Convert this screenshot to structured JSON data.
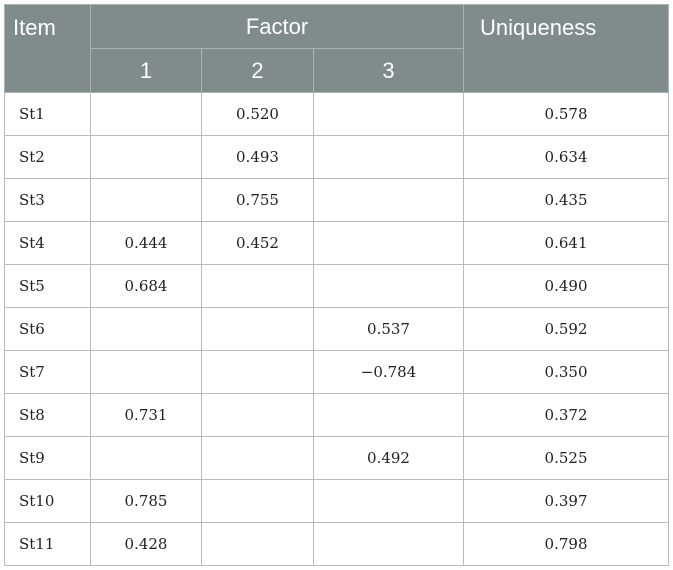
{
  "table": {
    "headers": {
      "item": "Item",
      "factor": "Factor",
      "uniqueness": "Uniqueness",
      "factor_columns": [
        "1",
        "2",
        "3"
      ]
    },
    "rows": [
      {
        "item": "St1",
        "f1": "",
        "f2": "0.520",
        "f3": "",
        "uniqueness": "0.578"
      },
      {
        "item": "St2",
        "f1": "",
        "f2": "0.493",
        "f3": "",
        "uniqueness": "0.634"
      },
      {
        "item": "St3",
        "f1": "",
        "f2": "0.755",
        "f3": "",
        "uniqueness": "0.435"
      },
      {
        "item": "St4",
        "f1": "0.444",
        "f2": "0.452",
        "f3": "",
        "uniqueness": "0.641"
      },
      {
        "item": "St5",
        "f1": "0.684",
        "f2": "",
        "f3": "",
        "uniqueness": "0.490"
      },
      {
        "item": "St6",
        "f1": "",
        "f2": "",
        "f3": "0.537",
        "uniqueness": "0.592"
      },
      {
        "item": "St7",
        "f1": "",
        "f2": "",
        "f3": "−0.784",
        "uniqueness": "0.350"
      },
      {
        "item": "St8",
        "f1": "0.731",
        "f2": "",
        "f3": "",
        "uniqueness": "0.372"
      },
      {
        "item": "St9",
        "f1": "",
        "f2": "",
        "f3": "0.492",
        "uniqueness": "0.525"
      },
      {
        "item": "St10",
        "f1": "0.785",
        "f2": "",
        "f3": "",
        "uniqueness": "0.397"
      },
      {
        "item": "St11",
        "f1": "0.428",
        "f2": "",
        "f3": "",
        "uniqueness": "0.798"
      }
    ]
  },
  "colors": {
    "header_bg": "#808b8b",
    "header_text": "#ffffff",
    "grid": "#b8bcbc"
  }
}
